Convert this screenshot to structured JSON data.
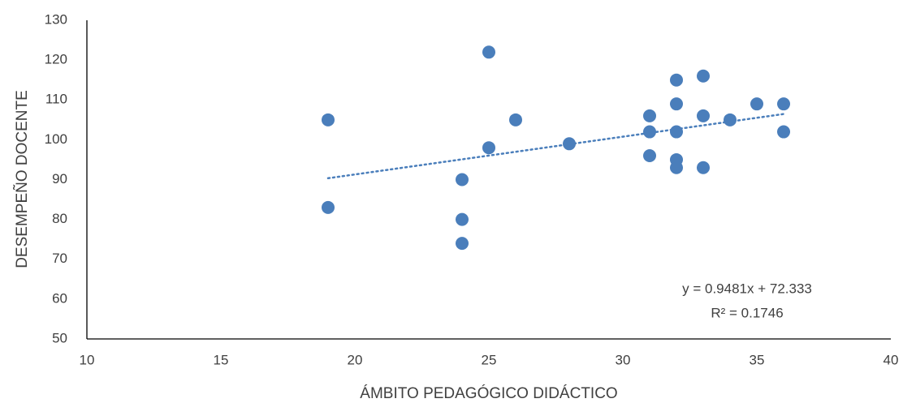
{
  "chart_data": {
    "type": "scatter",
    "x_label": "ÁMBITO  PEDAGÓGICO DIDÁCTICO",
    "y_label": "DESEMPEÑO DOCENTE",
    "series": [
      {
        "color": "#4a7ebb",
        "x": [
          19,
          19,
          24,
          24,
          24,
          25,
          25,
          26,
          28,
          31,
          31,
          31,
          32,
          32,
          32,
          32,
          32,
          33,
          33,
          33,
          34,
          35,
          36,
          36
        ],
        "values": [
          105,
          83,
          90,
          80,
          74,
          122,
          98,
          105,
          99,
          106,
          102,
          96,
          115,
          109,
          102,
          95,
          93,
          116,
          106,
          93,
          105,
          109,
          109,
          102
        ]
      }
    ],
    "trendline": {
      "slope": 0.9481,
      "intercept": 72.333,
      "color": "#4a7ebb",
      "equation": "y = 0.9481x + 72.333",
      "r_squared": "R² = 0.1746"
    },
    "xlim": [
      10,
      40
    ],
    "xticks": [
      10,
      15,
      20,
      25,
      30,
      35,
      40
    ],
    "ylim": [
      50,
      130
    ],
    "yticks": [
      50,
      60,
      70,
      80,
      90,
      100,
      110,
      120,
      130
    ],
    "grid": false
  }
}
